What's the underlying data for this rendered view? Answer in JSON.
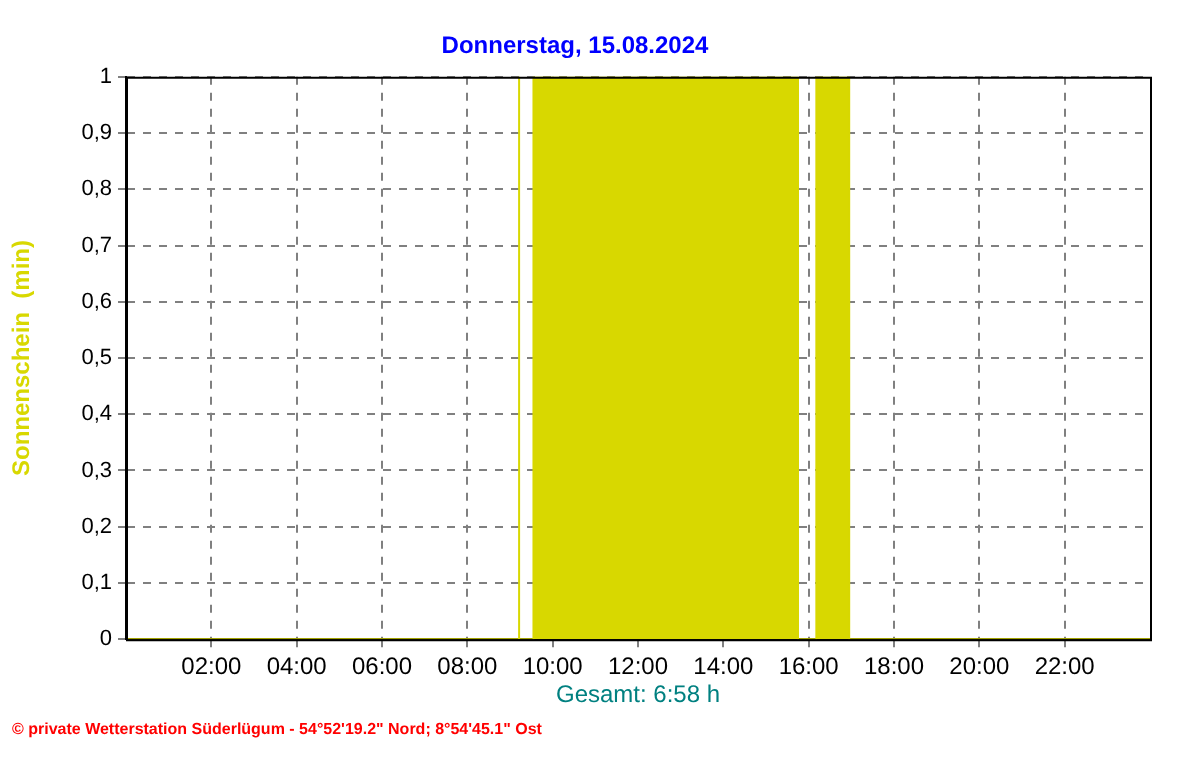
{
  "chart_data": {
    "type": "area",
    "title": "Donnerstag, 15.08.2024",
    "ylabel": "Sonnenschein  (min)",
    "x": [
      0,
      9.2,
      9.2,
      9.22,
      9.22,
      9.55,
      9.55,
      15.75,
      15.75,
      16.18,
      16.18,
      16.95,
      16.95,
      24
    ],
    "series": [
      {
        "color": "#d8d800",
        "values": [
          0,
          0,
          1,
          1,
          0,
          0,
          1,
          1,
          0,
          0,
          1,
          1,
          0,
          0
        ]
      }
    ],
    "xlim": [
      0,
      24
    ],
    "xticks": [
      {
        "value": 2,
        "label": "02:00"
      },
      {
        "value": 4,
        "label": "04:00"
      },
      {
        "value": 6,
        "label": "06:00"
      },
      {
        "value": 8,
        "label": "08:00"
      },
      {
        "value": 10,
        "label": "10:00"
      },
      {
        "value": 12,
        "label": "12:00"
      },
      {
        "value": 14,
        "label": "14:00"
      },
      {
        "value": 16,
        "label": "16:00"
      },
      {
        "value": 18,
        "label": "18:00"
      },
      {
        "value": 20,
        "label": "20:00"
      },
      {
        "value": 22,
        "label": "22:00"
      }
    ],
    "ylim": [
      0,
      1
    ],
    "yticks": [
      0,
      {
        "value": 0.1,
        "label": "0,1"
      },
      {
        "value": 0.2,
        "label": "0,2"
      },
      {
        "value": 0.3,
        "label": "0,3"
      },
      {
        "value": 0.4,
        "label": "0,4"
      },
      {
        "value": 0.5,
        "label": "0,5"
      },
      {
        "value": 0.6,
        "label": "0,6"
      },
      {
        "value": 0.7,
        "label": "0,7"
      },
      {
        "value": 0.8,
        "label": "0,8"
      },
      {
        "value": 0.9,
        "label": "0,9"
      },
      1
    ],
    "grid": true,
    "legend": false,
    "line_style": "solid",
    "marker": "none",
    "annotations": [
      "Gesamt: 6:58 h",
      "© private Wetterstation Süderlügum - 54°52'19.2\" Nord; 8°54'45.1\" Ost"
    ]
  }
}
